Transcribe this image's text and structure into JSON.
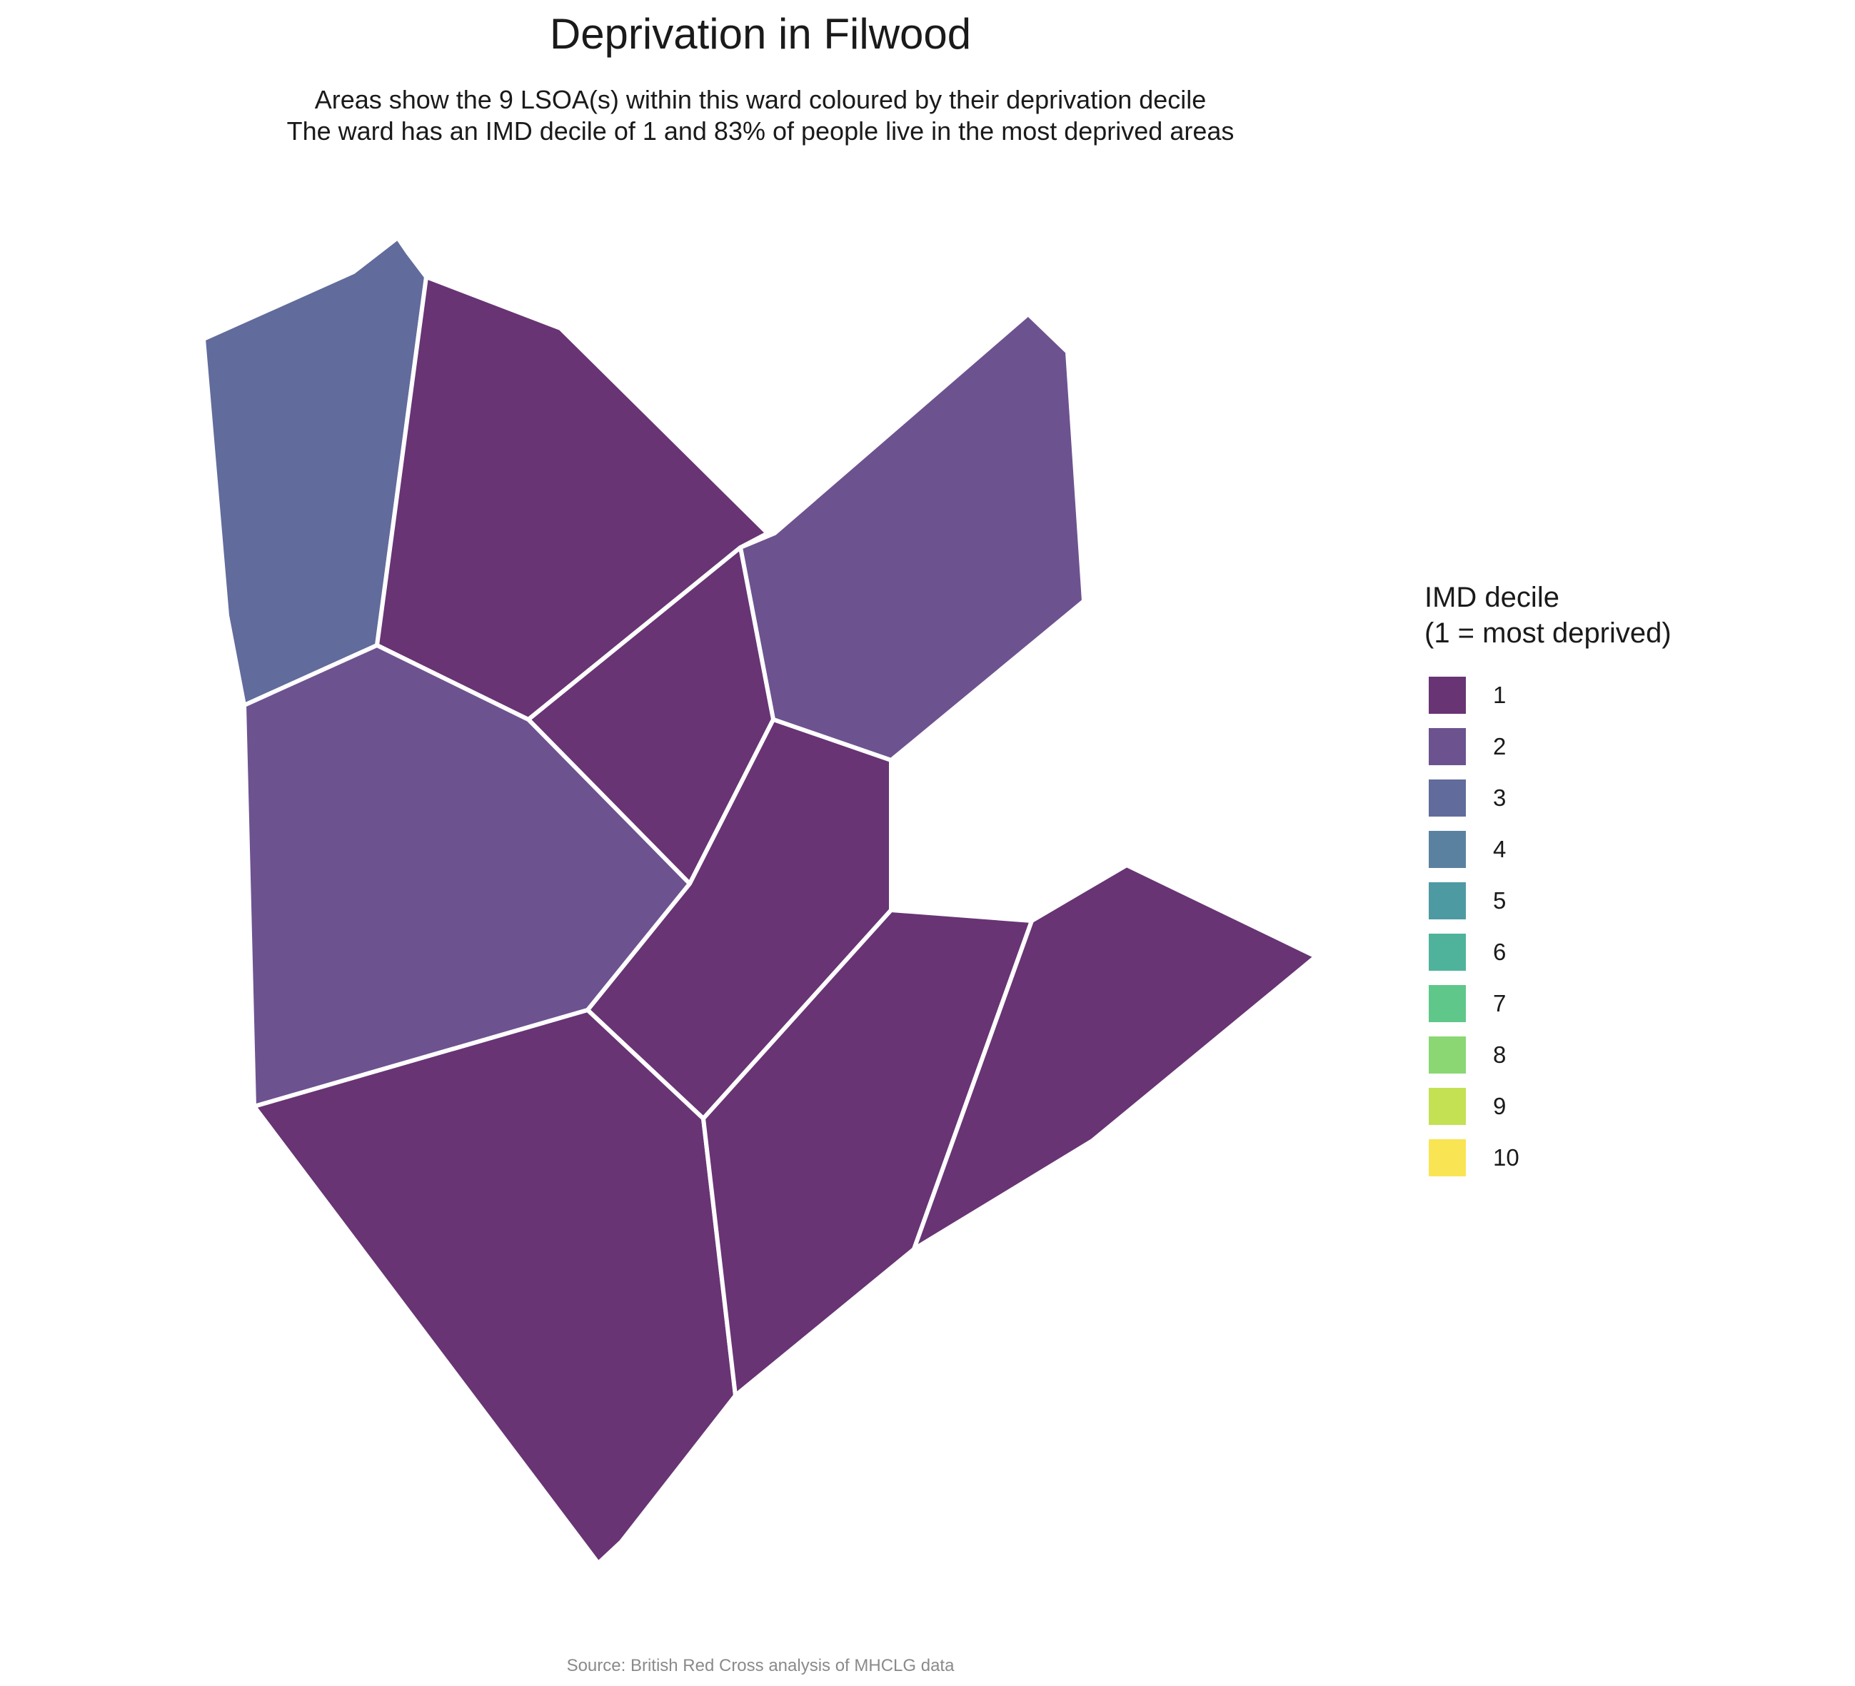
{
  "title": "Deprivation in Filwood",
  "subtitle": {
    "line1": "Areas show the 9 LSOA(s) within this ward coloured by their deprivation decile",
    "line2": "The ward has an IMD decile of 1 and 83% of people live in the most deprived areas"
  },
  "legend": {
    "title_line1": "IMD decile",
    "title_line2": "(1 = most deprived)",
    "items": [
      {
        "label": "1",
        "color": "#683474"
      },
      {
        "label": "2",
        "color": "#6d5290"
      },
      {
        "label": "3",
        "color": "#616b9c"
      },
      {
        "label": "4",
        "color": "#5a82a0"
      },
      {
        "label": "5",
        "color": "#4e9aa3"
      },
      {
        "label": "6",
        "color": "#4fb39c"
      },
      {
        "label": "7",
        "color": "#5fc78a"
      },
      {
        "label": "8",
        "color": "#8ad773"
      },
      {
        "label": "9",
        "color": "#c4e154"
      },
      {
        "label": "10",
        "color": "#f9e553"
      }
    ]
  },
  "areas": [
    {
      "id": "lsoa-a",
      "decile": 3
    },
    {
      "id": "lsoa-b",
      "decile": 1
    },
    {
      "id": "lsoa-c",
      "decile": 2
    },
    {
      "id": "lsoa-d",
      "decile": 1
    },
    {
      "id": "lsoa-e",
      "decile": 2
    },
    {
      "id": "lsoa-f",
      "decile": 1
    },
    {
      "id": "lsoa-g",
      "decile": 1
    },
    {
      "id": "lsoa-h",
      "decile": 1
    },
    {
      "id": "lsoa-i",
      "decile": 1
    }
  ],
  "caption": "Source: British Red Cross analysis of MHCLG data"
}
